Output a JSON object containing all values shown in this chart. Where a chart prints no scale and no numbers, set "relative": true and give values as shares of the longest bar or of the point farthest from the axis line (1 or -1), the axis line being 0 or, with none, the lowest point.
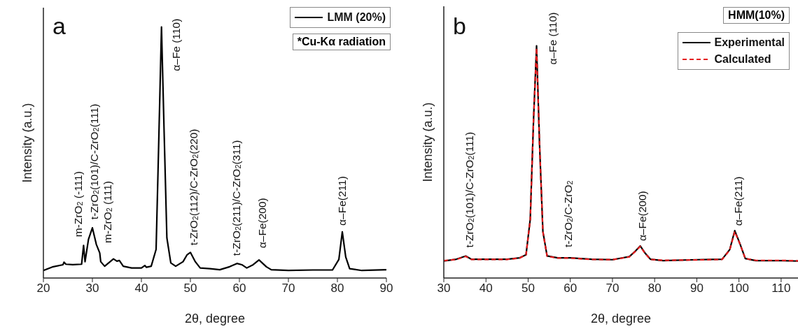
{
  "chart_data": [
    {
      "type": "line",
      "relative": true,
      "xlabel": "2θ, degree",
      "ylabel": "Intensity (a.u.)",
      "xlim": [
        20,
        90
      ],
      "xticks": [
        20,
        30,
        40,
        50,
        60,
        70,
        80,
        90
      ],
      "tick_labels": "x",
      "legend": "top right",
      "line_style": "solid",
      "series": [
        {
          "name": "LMM (20%)",
          "color": "#000000",
          "x": [
            20,
            22,
            24,
            24.2,
            24.6,
            26,
            27.8,
            28.2,
            28.5,
            29.2,
            30,
            30.8,
            31.5,
            31.7,
            32.5,
            34.3,
            35,
            35.5,
            36.3,
            38,
            40,
            40.7,
            41,
            42,
            43,
            43.5,
            44.1,
            44.6,
            45.2,
            46,
            47,
            48.5,
            49.3,
            50,
            51,
            52,
            54,
            56,
            58,
            59.5,
            60.5,
            61.5,
            62.8,
            64,
            65.5,
            66.5,
            70,
            75,
            79,
            80.3,
            81,
            81.7,
            82.5,
            85,
            90
          ],
          "values": [
            0.03,
            0.045,
            0.053,
            0.063,
            0.055,
            0.053,
            0.055,
            0.13,
            0.065,
            0.154,
            0.2,
            0.134,
            0.1,
            0.065,
            0.047,
            0.076,
            0.067,
            0.07,
            0.047,
            0.04,
            0.04,
            0.05,
            0.043,
            0.047,
            0.114,
            0.51,
            1,
            0.61,
            0.16,
            0.06,
            0.047,
            0.065,
            0.092,
            0.102,
            0.065,
            0.04,
            0.037,
            0.033,
            0.045,
            0.058,
            0.053,
            0.04,
            0.053,
            0.072,
            0.045,
            0.033,
            0.03,
            0.032,
            0.032,
            0.074,
            0.184,
            0.084,
            0.037,
            0.03,
            0.033
          ]
        }
      ],
      "annotations": [
        "a",
        "*Cu-Kα radiation",
        {
          "text": "m-ZrO$_{2}$ (-111)",
          "x": 28.2,
          "y": 0.13
        },
        {
          "text": "t-ZrO$_{2}$(101)/C-ZrO$_{2}$(111)",
          "x": 30,
          "y": 0.2
        },
        {
          "text": "m-ZrO$_{2}$ (111)",
          "x": 31.5,
          "y": 0.1
        },
        {
          "text": "α–Fe (110)",
          "x": 44.1,
          "y": 1
        },
        {
          "text": "t-ZrO$_{2}$(112)/C-ZrO$_{2}$(220)",
          "x": 50,
          "y": 0.102
        },
        {
          "text": "t-ZrO$_{2}$(211)/C-ZrO$_{2}$(311)",
          "x": 59.5,
          "y": 0.058
        },
        {
          "text": "α–Fe(200)",
          "x": 64,
          "y": 0.072
        },
        {
          "text": "α–Fe(211)",
          "x": 81,
          "y": 0.184
        }
      ]
    },
    {
      "type": "line",
      "relative": true,
      "xlabel": "2θ, degree",
      "ylabel": "Intensity (a.u.)",
      "xlim": [
        30,
        114
      ],
      "xticks": [
        30,
        40,
        50,
        60,
        70,
        80,
        90,
        100,
        110
      ],
      "tick_labels": "x",
      "legend": "top right",
      "legend_title": "HMM(10%)",
      "series": [
        {
          "name": "Experimental",
          "color": "#000000",
          "line_style": "solid",
          "x": [
            30,
            33,
            35.2,
            36.5,
            40,
            45,
            48,
            49.5,
            50.5,
            51.3,
            52,
            52.7,
            53.5,
            54.5,
            57,
            60,
            65,
            70,
            74,
            75.5,
            76.6,
            77.8,
            79,
            82,
            90,
            96,
            97.8,
            99,
            100.2,
            101.5,
            104,
            110,
            114
          ],
          "values": [
            0.073,
            0.081,
            0.095,
            0.081,
            0.081,
            0.081,
            0.087,
            0.1,
            0.253,
            0.69,
            1,
            0.58,
            0.2,
            0.095,
            0.087,
            0.087,
            0.081,
            0.079,
            0.092,
            0.117,
            0.138,
            0.106,
            0.081,
            0.075,
            0.079,
            0.081,
            0.122,
            0.204,
            0.149,
            0.084,
            0.075,
            0.075,
            0.073
          ]
        },
        {
          "name": "Calculated",
          "color": "#e41a1c",
          "line_style": "dashed",
          "x": [
            30,
            33,
            35.2,
            36.5,
            40,
            45,
            48,
            49.5,
            50.5,
            51.3,
            52,
            52.7,
            53.5,
            54.5,
            57,
            60,
            65,
            70,
            74,
            75.5,
            76.6,
            77.8,
            79,
            82,
            90,
            96,
            97.8,
            99,
            100.2,
            101.5,
            104,
            110,
            114
          ],
          "values": [
            0.075,
            0.08,
            0.093,
            0.08,
            0.08,
            0.08,
            0.086,
            0.1,
            0.25,
            0.69,
            0.99,
            0.58,
            0.2,
            0.094,
            0.086,
            0.086,
            0.08,
            0.079,
            0.091,
            0.116,
            0.136,
            0.105,
            0.08,
            0.076,
            0.078,
            0.08,
            0.12,
            0.2,
            0.148,
            0.084,
            0.076,
            0.076,
            0.074
          ]
        }
      ],
      "annotations": [
        "b",
        {
          "text": "t-ZrO$_{2}$(101)/C-ZrO$_{2}$(111)",
          "x": 35.2,
          "y": 0.095
        },
        {
          "text": "α–Fe (110)",
          "x": 52,
          "y": 1
        },
        {
          "text": "t-ZrO$_{2}$/C-ZrO$_{2}$",
          "x": 60,
          "y": 0.087
        },
        {
          "text": "α–Fe(200)",
          "x": 76.6,
          "y": 0.138
        },
        {
          "text": "α–Fe(211)",
          "x": 99,
          "y": 0.204
        }
      ]
    }
  ]
}
